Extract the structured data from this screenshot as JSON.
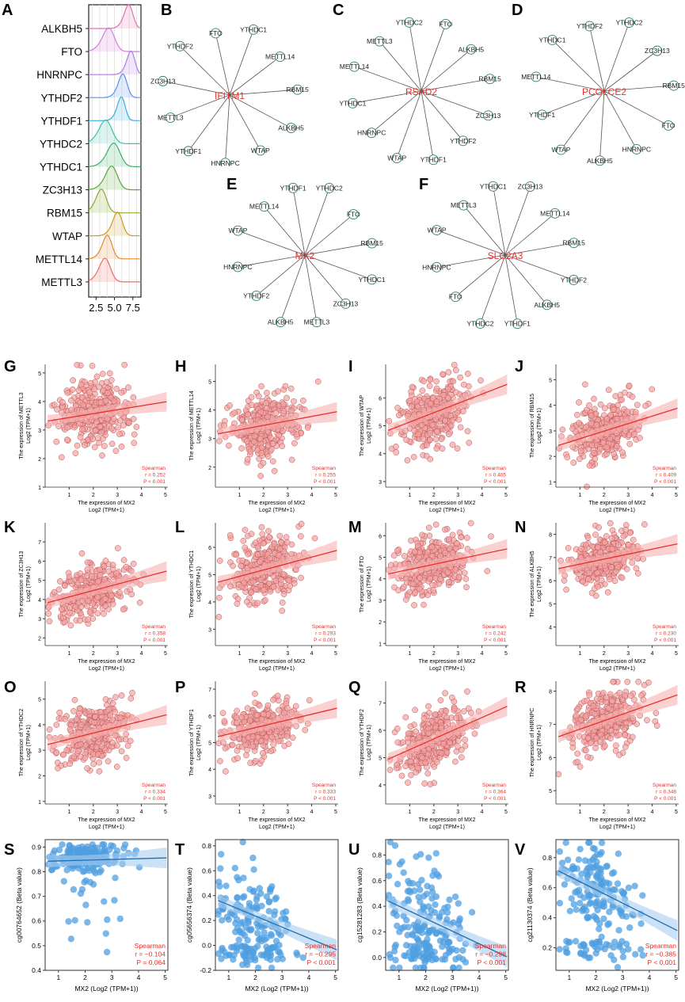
{
  "figure": {
    "panel_letters": [
      "A",
      "B",
      "C",
      "D",
      "E",
      "F",
      "G",
      "H",
      "I",
      "J",
      "K",
      "L",
      "M",
      "N",
      "O",
      "P",
      "Q",
      "R",
      "S",
      "T",
      "U",
      "V"
    ]
  },
  "colors": {
    "scatter_red_fill": "#f4a3a3",
    "scatter_red_edge": "#b85555",
    "fit_red": "#e8302a",
    "band_red": "#f6b0b0",
    "scatter_blue_fill": "#4f9fe0",
    "fit_blue": "#1f6fb4",
    "band_blue": "#a9cdee",
    "network_label_red": "#e8302a",
    "node_edge": "#2e7d6b"
  },
  "chart_data": [
    {
      "id": "A",
      "type": "ridgeline",
      "categories": [
        "ALKBH5",
        "FTO",
        "HNRNPC",
        "YTHDF2",
        "YTHDF1",
        "YTHDC2",
        "YTHDC1",
        "ZC3H13",
        "RBM15",
        "WTAP",
        "METTL14",
        "METTL3"
      ],
      "peaks": [
        7.0,
        4.3,
        7.3,
        6.2,
        6.0,
        3.9,
        5.0,
        4.7,
        3.3,
        5.5,
        4.1,
        3.8
      ],
      "widths": [
        0.55,
        0.75,
        0.5,
        0.55,
        0.5,
        0.8,
        0.8,
        0.75,
        0.65,
        0.6,
        0.6,
        0.7
      ],
      "colors": [
        "#e66fb4",
        "#d57be0",
        "#b37be8",
        "#5b8ff0",
        "#3aaee0",
        "#3cc3a8",
        "#37b36a",
        "#58a83a",
        "#8dab28",
        "#c79d1a",
        "#e48a2c",
        "#ef6b60"
      ],
      "xticks": [
        "2.5",
        "5.0",
        "7.5"
      ],
      "xlim": [
        1.5,
        8.6
      ]
    },
    {
      "id": "B",
      "type": "network",
      "center": "IFITM1",
      "nodes": [
        "YTHDC1",
        "METTL14",
        "RBM15",
        "ALKBH5",
        "WTAP",
        "HNRNPC",
        "YTHDF1",
        "METTL3",
        "ZC3H13",
        "YTHDF2",
        "FTO"
      ]
    },
    {
      "id": "C",
      "type": "network",
      "center": "RSAD2",
      "nodes": [
        "FTO",
        "ALKBH5",
        "RBM15",
        "ZC3H13",
        "YTHDF2",
        "YTHDF1",
        "WTAP",
        "HNRNPC",
        "YTHDC1",
        "METTL14",
        "METTL3",
        "YTHDC2"
      ]
    },
    {
      "id": "D",
      "type": "network",
      "center": "PCOLCE2",
      "nodes": [
        "YTHDC2",
        "ZC3H13",
        "RBM15",
        "FTO",
        "HNRNPC",
        "ALKBH5",
        "WTAP",
        "YTHDF1",
        "METTL14",
        "YTHDC1",
        "YTHDF2"
      ]
    },
    {
      "id": "E",
      "type": "network",
      "center": "MX2",
      "nodes": [
        "YTHDC2",
        "FTO",
        "RBM15",
        "YTHDC1",
        "ZC3H13",
        "METTL3",
        "ALKBH5",
        "YTHDF2",
        "HNRNPC",
        "WTAP",
        "METTL14",
        "YTHDF1"
      ]
    },
    {
      "id": "F",
      "type": "network",
      "center": "SLC2A3",
      "nodes": [
        "ZC3H13",
        "METTL14",
        "RBM15",
        "YTHDF2",
        "ALKBH5",
        "YTHDF1",
        "YTHDC2",
        "FTO",
        "HNRNPC",
        "WTAP",
        "METTL3",
        "YTHDC1"
      ]
    },
    {
      "id": "G",
      "type": "scatter",
      "gene": "METTL3",
      "ylabel": "The expression of METTL3",
      "ylabel2": "Log2 (TPM+1)",
      "xlabel": "The expression of MX2",
      "xlabel2": "Log2 (TPM+1)",
      "yticks": [
        "1",
        "2",
        "3",
        "4",
        "5"
      ],
      "ylim": [
        1.0,
        5.3
      ],
      "xticks": [
        "1",
        "2",
        "3",
        "4",
        "5"
      ],
      "xlim": [
        0,
        5.1
      ],
      "fit": [
        3.3,
        4.0
      ],
      "r": "r = 0.252",
      "p": "P < 0.001",
      "center": 3.6,
      "spread": 0.55,
      "style": "red"
    },
    {
      "id": "H",
      "type": "scatter",
      "gene": "METTL14",
      "ylabel": "The expression of METTL14",
      "ylabel2": "Log2 (TPM+1)",
      "xlabel": "The expression of MX2",
      "xlabel2": "Log2 (TPM+1)",
      "yticks": [
        "2",
        "3",
        "4",
        "5"
      ],
      "ylim": [
        1.3,
        5.6
      ],
      "xticks": [
        "1",
        "2",
        "3",
        "4",
        "5"
      ],
      "xlim": [
        0,
        5.1
      ],
      "fit": [
        3.15,
        3.95
      ],
      "r": "r = 0.255",
      "p": "P < 0.001",
      "center": 3.5,
      "spread": 0.55,
      "style": "red"
    },
    {
      "id": "I",
      "type": "scatter",
      "gene": "WTAP",
      "ylabel": "The expression of WTAP",
      "ylabel2": "Log2 (TPM+1)",
      "xlabel": "The expression of MX2",
      "xlabel2": "Log2 (TPM+1)",
      "yticks": [
        "3",
        "4",
        "5",
        "6"
      ],
      "ylim": [
        2.8,
        7.2
      ],
      "xticks": [
        "1",
        "2",
        "3",
        "4",
        "5"
      ],
      "xlim": [
        0,
        5.1
      ],
      "fit": [
        4.8,
        6.5
      ],
      "r": "r = 0.405",
      "p": "P < 0.001",
      "center": 5.4,
      "spread": 0.55,
      "style": "red"
    },
    {
      "id": "J",
      "type": "scatter",
      "gene": "RBM15",
      "ylabel": "The expression of RBM15",
      "ylabel2": "Log2 (TPM+1)",
      "xlabel": "The expression of MX2",
      "xlabel2": "Log2 (TPM+1)",
      "yticks": [
        "1",
        "2",
        "3",
        "4",
        "5"
      ],
      "ylim": [
        0.8,
        5.6
      ],
      "xticks": [
        "1",
        "2",
        "3",
        "4",
        "5"
      ],
      "xlim": [
        0,
        5.1
      ],
      "fit": [
        2.4,
        3.9
      ],
      "r": "r = 0.409",
      "p": "P < 0.001",
      "center": 3.0,
      "spread": 0.55,
      "style": "red"
    },
    {
      "id": "K",
      "type": "scatter",
      "gene": "ZC3H13",
      "ylabel": "The expression of ZC3H13",
      "ylabel2": "Log2 (TPM+1)",
      "xlabel": "The expression of MX2",
      "xlabel2": "Log2 (TPM+1)",
      "yticks": [
        "2",
        "3",
        "4",
        "5",
        "6",
        "7"
      ],
      "ylim": [
        1.6,
        8.0
      ],
      "xticks": [
        "1",
        "2",
        "3",
        "4",
        "5"
      ],
      "xlim": [
        0,
        5.1
      ],
      "fit": [
        3.8,
        5.5
      ],
      "r": "r = 0.358",
      "p": "P < 0.001",
      "center": 4.5,
      "spread": 0.7,
      "style": "red"
    },
    {
      "id": "L",
      "type": "scatter",
      "gene": "YTHDC1",
      "ylabel": "The expression of YTHDC1",
      "ylabel2": "Log2 (TPM+1)",
      "xlabel": "The expression of MX2",
      "xlabel2": "Log2 (TPM+1)",
      "yticks": [
        "3",
        "4",
        "5",
        "6"
      ],
      "ylim": [
        2.4,
        6.9
      ],
      "xticks": [
        "1",
        "2",
        "3",
        "4",
        "5"
      ],
      "xlim": [
        0,
        5.1
      ],
      "fit": [
        4.7,
        5.9
      ],
      "r": "r = 0.293",
      "p": "P < 0.001",
      "center": 5.1,
      "spread": 0.6,
      "style": "red"
    },
    {
      "id": "M",
      "type": "scatter",
      "gene": "FTO",
      "ylabel": "The expression of FTO",
      "ylabel2": "Log2 (TPM+1)",
      "xlabel": "The expression of MX2",
      "xlabel2": "Log2 (TPM+1)",
      "yticks": [
        "1",
        "2",
        "3",
        "4",
        "5",
        "6"
      ],
      "ylim": [
        0.9,
        6.6
      ],
      "xticks": [
        "1",
        "2",
        "3",
        "4",
        "5"
      ],
      "xlim": [
        0,
        5.1
      ],
      "fit": [
        4.2,
        5.4
      ],
      "r": "r = 0.242",
      "p": "P < 0.001",
      "center": 4.6,
      "spread": 0.7,
      "style": "red"
    },
    {
      "id": "N",
      "type": "scatter",
      "gene": "ALKBH5",
      "ylabel": "The expression of ALKBH5",
      "ylabel2": "Log2 (TPM+1)",
      "xlabel": "The expression of MX2",
      "xlabel2": "Log2 (TPM+1)",
      "yticks": [
        "4",
        "5",
        "6",
        "7",
        "8"
      ],
      "ylim": [
        3.2,
        8.5
      ],
      "xticks": [
        "1",
        "2",
        "3",
        "4",
        "5"
      ],
      "xlim": [
        0,
        5.1
      ],
      "fit": [
        6.5,
        7.6
      ],
      "r": "r = 0.230",
      "p": "P < 0.001",
      "center": 6.9,
      "spread": 0.55,
      "style": "red"
    },
    {
      "id": "O",
      "type": "scatter",
      "gene": "YTHDC2",
      "ylabel": "The expression of YTHDC2",
      "ylabel2": "Log2 (TPM+1)",
      "xlabel": "The expression of MX2",
      "xlabel2": "Log2 (TPM+1)",
      "yticks": [
        "1",
        "2",
        "3",
        "4",
        "5"
      ],
      "ylim": [
        0.9,
        5.7
      ],
      "xticks": [
        "1",
        "2",
        "3",
        "4",
        "5"
      ],
      "xlim": [
        0,
        5.1
      ],
      "fit": [
        3.2,
        4.4
      ],
      "r": "r = 0.334",
      "p": "P < 0.001",
      "center": 3.7,
      "spread": 0.6,
      "style": "red"
    },
    {
      "id": "P",
      "type": "scatter",
      "gene": "YTHDF1",
      "ylabel": "The expression of YTHDF1",
      "ylabel2": "Log2 (TPM+1)",
      "xlabel": "The expression of MX2",
      "xlabel2": "Log2 (TPM+1)",
      "yticks": [
        "3",
        "4",
        "5",
        "6",
        "7"
      ],
      "ylim": [
        2.7,
        7.3
      ],
      "xticks": [
        "1",
        "2",
        "3",
        "4",
        "5"
      ],
      "xlim": [
        0,
        5.1
      ],
      "fit": [
        5.2,
        6.3
      ],
      "r": "r = 0.333",
      "p": "P < 0.001",
      "center": 5.6,
      "spread": 0.5,
      "style": "red"
    },
    {
      "id": "Q",
      "type": "scatter",
      "gene": "YTHDF2",
      "ylabel": "The expression of YTHDF2",
      "ylabel2": "Log2 (TPM+1)",
      "xlabel": "The expression of MX2",
      "xlabel2": "Log2 (TPM+1)",
      "yticks": [
        "4",
        "5",
        "6",
        "7"
      ],
      "ylim": [
        3.3,
        7.8
      ],
      "xticks": [
        "1",
        "2",
        "3",
        "4",
        "5"
      ],
      "xlim": [
        0,
        5.1
      ],
      "fit": [
        4.9,
        6.9
      ],
      "r": "r = 0.364",
      "p": "P < 0.001",
      "center": 5.6,
      "spread": 0.55,
      "style": "red"
    },
    {
      "id": "R",
      "type": "scatter",
      "gene": "HNRNPC",
      "ylabel": "The expression of HNRNPC",
      "ylabel2": "Log2 (TPM+1)",
      "xlabel": "The expression of MX2",
      "xlabel2": "Log2 (TPM+1)",
      "yticks": [
        "5",
        "6",
        "7",
        "8"
      ],
      "ylim": [
        4.6,
        8.3
      ],
      "xticks": [
        "1",
        "2",
        "3",
        "4",
        "5"
      ],
      "xlim": [
        0,
        5.1
      ],
      "fit": [
        6.6,
        7.9
      ],
      "r": "r = 0.348",
      "p": "P < 0.001",
      "center": 7.1,
      "spread": 0.45,
      "style": "red"
    },
    {
      "id": "S",
      "type": "scatter",
      "gene": "cg00764652",
      "ylabel": "cg00764652 (Beta value)",
      "xlabel": "MX2 (Log2 (TPM+1))",
      "yticks": [
        "0.4",
        "0.5",
        "0.6",
        "0.7",
        "0.8",
        "0.9"
      ],
      "ylim": [
        0.4,
        0.93
      ],
      "xticks": [
        "1",
        "2",
        "3",
        "4",
        "5"
      ],
      "xlim": [
        0.5,
        5.1
      ],
      "fit": [
        0.842,
        0.856
      ],
      "r": "r = −0.104",
      "p": "P = 0.064",
      "center": 0.86,
      "spread": 0.05,
      "style": "blue"
    },
    {
      "id": "T",
      "type": "scatter",
      "gene": "cg05656374",
      "ylabel": "cg05656374 (Beta value)",
      "xlabel": "MX2 (Log2 (TPM+1))",
      "yticks": [
        "-0.2",
        "0.0",
        "0.2",
        "0.4",
        "0.6",
        "0.8"
      ],
      "ylim": [
        -0.2,
        0.85
      ],
      "xticks": [
        "1",
        "2",
        "3",
        "4",
        "5"
      ],
      "xlim": [
        0.5,
        5.1
      ],
      "fit": [
        0.37,
        -0.04
      ],
      "r": "r = −0.295",
      "p": "P < 0.001",
      "center": 0.25,
      "spread": 0.2,
      "style": "blue"
    },
    {
      "id": "U",
      "type": "scatter",
      "gene": "cg15281283",
      "ylabel": "cg15281283 (Beta value)",
      "xlabel": "MX2 (Log2 (TPM+1))",
      "yticks": [
        "0.0",
        "0.2",
        "0.4",
        "0.6",
        "0.8"
      ],
      "ylim": [
        -0.1,
        0.92
      ],
      "xticks": [
        "1",
        "2",
        "3",
        "4",
        "5"
      ],
      "xlim": [
        0.5,
        5.1
      ],
      "fit": [
        0.45,
        0.0
      ],
      "r": "r = −0.298",
      "p": "P < 0.001",
      "center": 0.32,
      "spread": 0.22,
      "style": "blue"
    },
    {
      "id": "V",
      "type": "scatter",
      "gene": "cg21130374",
      "ylabel": "cg21130374 (Beta value)",
      "xlabel": "MX2 (Log2 (TPM+1))",
      "yticks": [
        "0.2",
        "0.4",
        "0.6",
        "0.8"
      ],
      "ylim": [
        0.05,
        0.92
      ],
      "xticks": [
        "1",
        "2",
        "3",
        "4",
        "5"
      ],
      "xlim": [
        0.5,
        5.1
      ],
      "fit": [
        0.72,
        0.31
      ],
      "r": "r = −0.385",
      "p": "P < 0.001",
      "center": 0.6,
      "spread": 0.15,
      "style": "blue"
    }
  ],
  "spearman_label": "Spearman"
}
